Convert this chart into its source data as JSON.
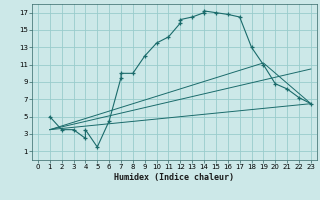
{
  "xlabel": "Humidex (Indice chaleur)",
  "bg_color": "#cce8e8",
  "grid_color": "#99cccc",
  "line_color": "#1a6b6b",
  "xlim": [
    -0.5,
    23.5
  ],
  "ylim": [
    0,
    18
  ],
  "xticks": [
    0,
    1,
    2,
    3,
    4,
    5,
    6,
    7,
    8,
    9,
    10,
    11,
    12,
    13,
    14,
    15,
    16,
    17,
    18,
    19,
    20,
    21,
    22,
    23
  ],
  "yticks": [
    1,
    3,
    5,
    7,
    9,
    11,
    13,
    15,
    17
  ],
  "line1_x": [
    1,
    2,
    3,
    4,
    4,
    5,
    6,
    7,
    7,
    8,
    9,
    10,
    11,
    12,
    12,
    13,
    14,
    14,
    15,
    16,
    17,
    18,
    19,
    20,
    21,
    22,
    23
  ],
  "line1_y": [
    5,
    3.5,
    3.5,
    2.5,
    3.5,
    1.5,
    4.5,
    9.5,
    10,
    10,
    12,
    13.5,
    14.2,
    15.8,
    16.2,
    16.5,
    17,
    17.2,
    17,
    16.8,
    16.5,
    13,
    11,
    8.8,
    8.2,
    7.2,
    6.5
  ],
  "line2_x": [
    1,
    23
  ],
  "line2_y": [
    3.5,
    6.5
  ],
  "line3_x": [
    1,
    23
  ],
  "line3_y": [
    3.5,
    10.5
  ],
  "line4_x": [
    1,
    19,
    23
  ],
  "line4_y": [
    3.5,
    11.2,
    6.5
  ]
}
